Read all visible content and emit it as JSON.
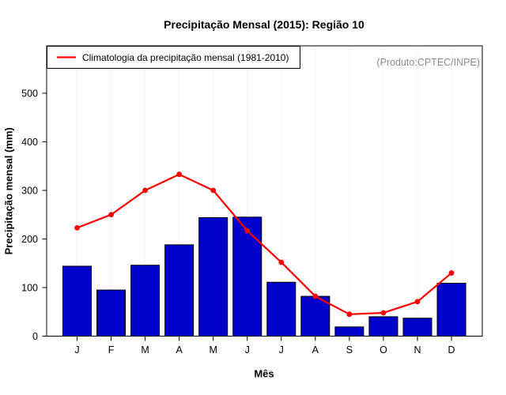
{
  "page": {
    "title": "Precipitação Mensal (2015): Região 10",
    "watermark": "(Produto:CPTEC/INPE)"
  },
  "chart_data": {
    "type": "bar",
    "title": "Precipitação Mensal (2015): Região 10",
    "xlabel": "Mês",
    "ylabel": "Precipitação mensal (mm)",
    "categories": [
      "J",
      "F",
      "M",
      "A",
      "M",
      "J",
      "J",
      "A",
      "S",
      "O",
      "N",
      "D"
    ],
    "series": [
      {
        "name": "Precipitação mensal 2015",
        "type": "bar",
        "color": "#0000CD",
        "border_color": "#000000",
        "values": [
          144,
          95,
          146,
          188,
          244,
          245,
          111,
          82,
          19,
          40,
          37,
          109
        ]
      },
      {
        "name": "Climatologia da precipitação mensal (1981-2010)",
        "type": "line",
        "color": "#FF0000",
        "marker": "circle",
        "values": [
          223,
          250,
          300,
          333,
          300,
          217,
          152,
          82,
          45,
          48,
          71,
          130
        ]
      }
    ],
    "ylim": [
      0,
      597
    ],
    "yticks": [
      0,
      100,
      200,
      300,
      400,
      500
    ],
    "grid": "vertical dotted lines at each month",
    "grid_color": "#D9D9D9",
    "legend": {
      "position": "top-left",
      "entries": [
        {
          "label": "Climatologia da precipitação mensal (1981-2010)",
          "color": "#FF0000",
          "marker": "line"
        }
      ]
    },
    "annotation": "(Produto:CPTEC/INPE)"
  }
}
